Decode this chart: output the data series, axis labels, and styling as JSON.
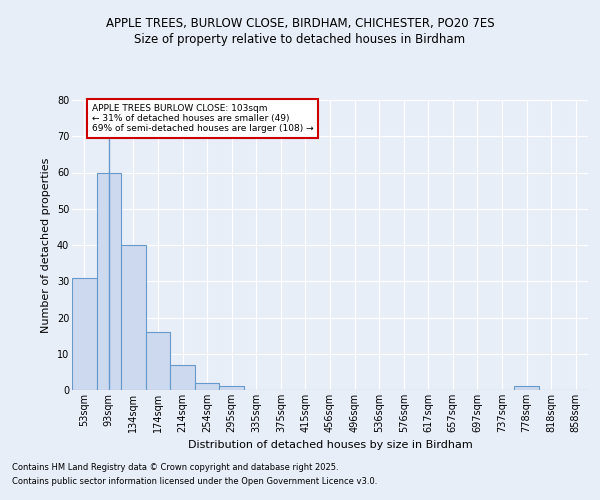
{
  "title1": "APPLE TREES, BURLOW CLOSE, BIRDHAM, CHICHESTER, PO20 7ES",
  "title2": "Size of property relative to detached houses in Birdham",
  "xlabel": "Distribution of detached houses by size in Birdham",
  "ylabel": "Number of detached properties",
  "categories": [
    "53sqm",
    "93sqm",
    "134sqm",
    "174sqm",
    "214sqm",
    "254sqm",
    "295sqm",
    "335sqm",
    "375sqm",
    "415sqm",
    "456sqm",
    "496sqm",
    "536sqm",
    "576sqm",
    "617sqm",
    "657sqm",
    "697sqm",
    "737sqm",
    "778sqm",
    "818sqm",
    "858sqm"
  ],
  "values": [
    31,
    60,
    40,
    16,
    7,
    2,
    1,
    0,
    0,
    0,
    0,
    0,
    0,
    0,
    0,
    0,
    0,
    0,
    1,
    0,
    0
  ],
  "bar_color": "#ccd9ee",
  "bar_edge_color": "#6699cc",
  "vertical_line_x": 1,
  "annotation_text": "APPLE TREES BURLOW CLOSE: 103sqm\n← 31% of detached houses are smaller (49)\n69% of semi-detached houses are larger (108) →",
  "annotation_box_facecolor": "#ffffff",
  "annotation_border_color": "#cc0000",
  "ylim": [
    0,
    80
  ],
  "yticks": [
    0,
    10,
    20,
    30,
    40,
    50,
    60,
    70,
    80
  ],
  "footer1": "Contains HM Land Registry data © Crown copyright and database right 2025.",
  "footer2": "Contains public sector information licensed under the Open Government Licence v3.0.",
  "bg_color": "#e8eef8",
  "plot_bg_color": "#e8eef8",
  "grid_color": "#ffffff",
  "title_fontsize": 8.5,
  "axis_label_fontsize": 8,
  "tick_fontsize": 7
}
